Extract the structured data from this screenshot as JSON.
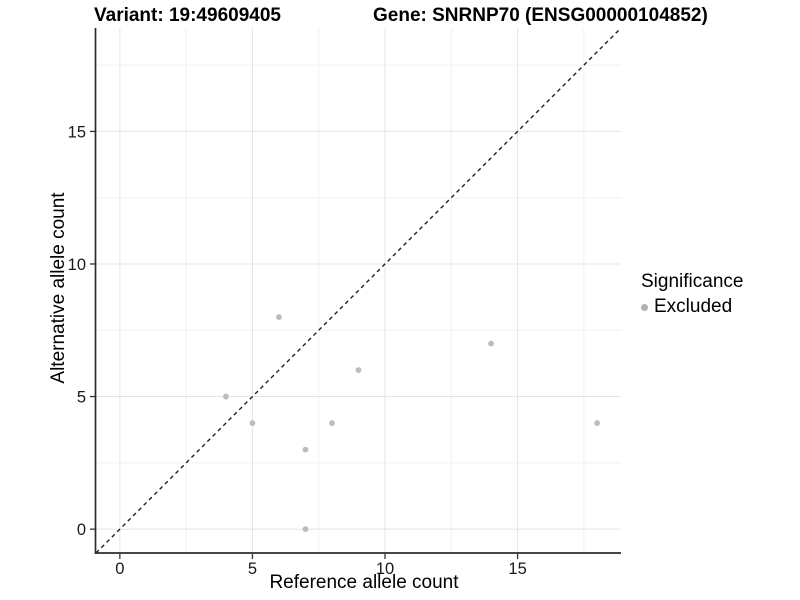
{
  "titles": {
    "variant": "Variant: 19:49609405",
    "gene": "Gene: SNRNP70 (ENSG00000104852)"
  },
  "chart_data": {
    "type": "scatter",
    "xlabel": "Reference allele count",
    "ylabel": "Alternative allele count",
    "x_ticks": [
      0,
      5,
      10,
      15
    ],
    "y_ticks": [
      0,
      5,
      10,
      15
    ],
    "xlim": [
      -0.9,
      18.9
    ],
    "ylim": [
      -0.9,
      18.9
    ],
    "grid": true,
    "identity_line": {
      "type": "dashed",
      "slope": 1,
      "intercept": 0
    },
    "series": [
      {
        "name": "Excluded",
        "points": [
          {
            "x": 4,
            "y": 5
          },
          {
            "x": 5,
            "y": 4
          },
          {
            "x": 6,
            "y": 8
          },
          {
            "x": 7,
            "y": 0
          },
          {
            "x": 7,
            "y": 3
          },
          {
            "x": 8,
            "y": 4
          },
          {
            "x": 9,
            "y": 6
          },
          {
            "x": 14,
            "y": 7
          },
          {
            "x": 18,
            "y": 4
          }
        ]
      }
    ],
    "legend": {
      "position": "right",
      "title": "Significance",
      "entries": [
        {
          "label": "Excluded",
          "color": "#b9b9b9"
        }
      ]
    }
  },
  "colors": {
    "point": "#bcbcbc",
    "legend_key": "#b2b2b2",
    "grid_major": "#e4e4e4",
    "grid_minor": "#f1f1f1",
    "axis_line": "#2b2b2b",
    "tick_mark": "#333333",
    "tick_label": "#1a1a1a",
    "identity_line": "#222222",
    "background": "#ffffff"
  }
}
